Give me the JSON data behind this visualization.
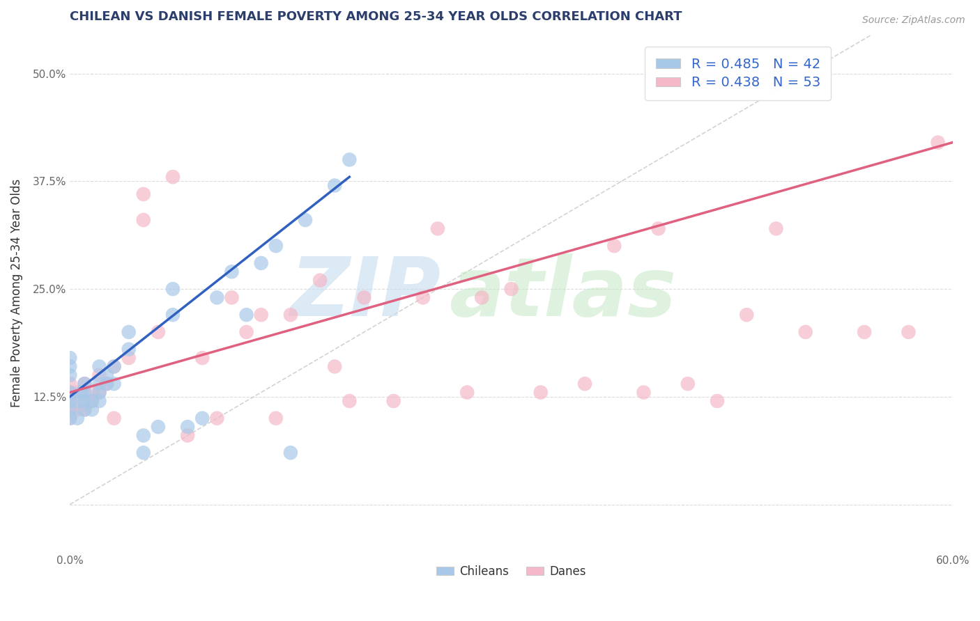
{
  "title": "CHILEAN VS DANISH FEMALE POVERTY AMONG 25-34 YEAR OLDS CORRELATION CHART",
  "source": "Source: ZipAtlas.com",
  "ylabel": "Female Poverty Among 25-34 Year Olds",
  "xlim": [
    0.0,
    0.6
  ],
  "ylim": [
    -0.055,
    0.545
  ],
  "xticks": [
    0.0,
    0.1,
    0.2,
    0.3,
    0.4,
    0.5,
    0.6
  ],
  "xticklabels": [
    "0.0%",
    "",
    "",
    "",
    "",
    "",
    "60.0%"
  ],
  "yticks": [
    0.0,
    0.125,
    0.25,
    0.375,
    0.5
  ],
  "yticklabels": [
    "",
    "12.5%",
    "25.0%",
    "37.5%",
    "50.0%"
  ],
  "background_color": "#ffffff",
  "grid_color": "#cccccc",
  "chilean_color": "#a8c8e8",
  "danish_color": "#f4b8c8",
  "chilean_line_color": "#3060c0",
  "danish_line_color": "#e06080",
  "diagonal_color": "#c0c0c0",
  "legend_blue_label": "R = 0.485   N = 42",
  "legend_pink_label": "R = 0.438   N = 53",
  "chilean_N": 42,
  "danish_N": 53,
  "chilean_x": [
    0.0,
    0.0,
    0.0,
    0.0,
    0.0,
    0.0,
    0.0,
    0.005,
    0.005,
    0.008,
    0.01,
    0.01,
    0.01,
    0.01,
    0.015,
    0.015,
    0.02,
    0.02,
    0.02,
    0.02,
    0.025,
    0.025,
    0.03,
    0.03,
    0.04,
    0.04,
    0.05,
    0.05,
    0.06,
    0.07,
    0.07,
    0.08,
    0.09,
    0.1,
    0.11,
    0.12,
    0.13,
    0.14,
    0.15,
    0.16,
    0.18,
    0.19
  ],
  "chilean_y": [
    0.1,
    0.11,
    0.12,
    0.13,
    0.15,
    0.16,
    0.17,
    0.1,
    0.12,
    0.13,
    0.11,
    0.12,
    0.13,
    0.14,
    0.11,
    0.12,
    0.12,
    0.13,
    0.14,
    0.16,
    0.14,
    0.15,
    0.14,
    0.16,
    0.18,
    0.2,
    0.08,
    0.06,
    0.09,
    0.22,
    0.25,
    0.09,
    0.1,
    0.24,
    0.27,
    0.22,
    0.28,
    0.3,
    0.06,
    0.33,
    0.37,
    0.4
  ],
  "danish_x": [
    0.0,
    0.0,
    0.0,
    0.0,
    0.0,
    0.005,
    0.005,
    0.01,
    0.01,
    0.01,
    0.015,
    0.015,
    0.02,
    0.02,
    0.025,
    0.03,
    0.03,
    0.04,
    0.05,
    0.05,
    0.06,
    0.07,
    0.08,
    0.09,
    0.1,
    0.11,
    0.12,
    0.13,
    0.14,
    0.15,
    0.17,
    0.18,
    0.19,
    0.2,
    0.22,
    0.24,
    0.25,
    0.27,
    0.28,
    0.3,
    0.32,
    0.35,
    0.37,
    0.39,
    0.4,
    0.42,
    0.44,
    0.46,
    0.48,
    0.5,
    0.54,
    0.57,
    0.59
  ],
  "danish_y": [
    0.1,
    0.11,
    0.12,
    0.13,
    0.14,
    0.11,
    0.13,
    0.11,
    0.12,
    0.14,
    0.12,
    0.13,
    0.13,
    0.15,
    0.14,
    0.1,
    0.16,
    0.17,
    0.33,
    0.36,
    0.2,
    0.38,
    0.08,
    0.17,
    0.1,
    0.24,
    0.2,
    0.22,
    0.1,
    0.22,
    0.26,
    0.16,
    0.12,
    0.24,
    0.12,
    0.24,
    0.32,
    0.13,
    0.24,
    0.25,
    0.13,
    0.14,
    0.3,
    0.13,
    0.32,
    0.14,
    0.12,
    0.22,
    0.32,
    0.2,
    0.2,
    0.2,
    0.42
  ],
  "blue_line_x": [
    0.0,
    0.19
  ],
  "blue_line_y": [
    0.125,
    0.38
  ],
  "pink_line_x": [
    0.0,
    0.6
  ],
  "pink_line_y": [
    0.13,
    0.42
  ]
}
